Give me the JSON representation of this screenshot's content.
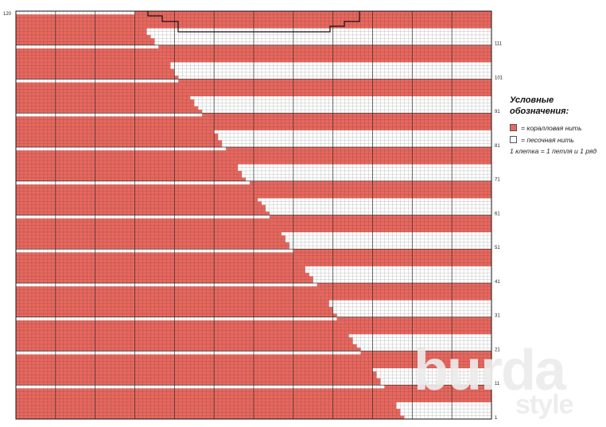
{
  "chart_data": {
    "type": "knitting-chart",
    "row_labels_right": [
      "111",
      "101",
      "91",
      "81",
      "71",
      "61",
      "51",
      "41",
      "31",
      "21",
      "11",
      "1"
    ],
    "row_label_top_left": "120",
    "colors": {
      "coral": "#e8675e",
      "sand": "#ffffff",
      "grid": "#2a2a2a"
    },
    "rows": 120,
    "columns": 120
  },
  "legend": {
    "title_line1": "Условные",
    "title_line2": "обозначения:",
    "coral_label": "= коралловая нить",
    "sand_label": "= песочная нить",
    "note": "1 клетка = 1 петля и 1 ряд"
  },
  "logo": {
    "main": "burda",
    "sub": "style"
  }
}
